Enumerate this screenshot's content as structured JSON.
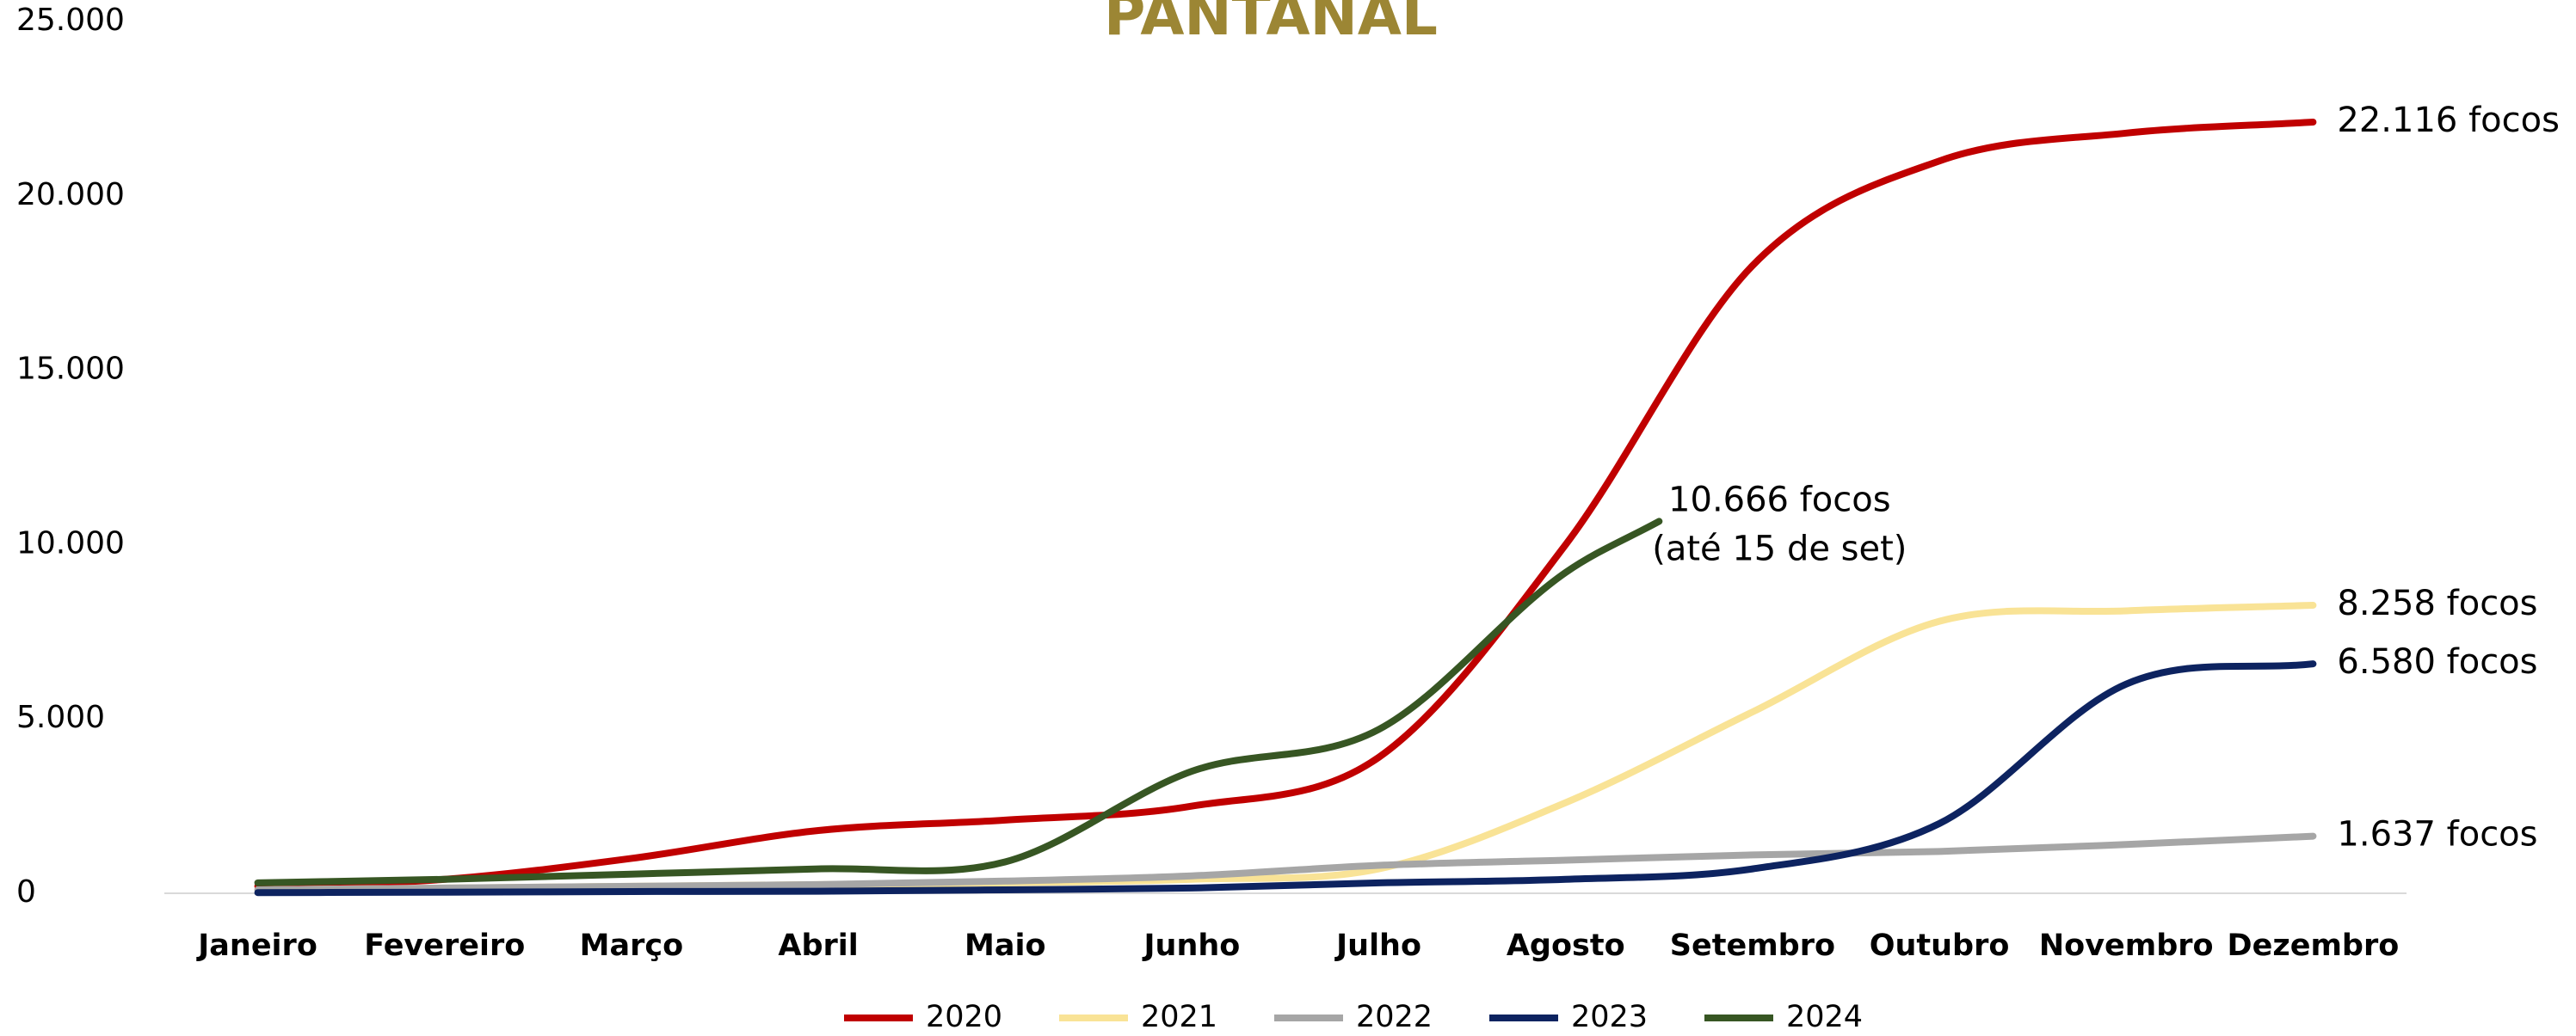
{
  "chart_data": {
    "type": "line",
    "title": "PANTANAL",
    "x": [
      1,
      2,
      3,
      4,
      5,
      6,
      7,
      8,
      9,
      10,
      11,
      12
    ],
    "xlim": [
      0.5,
      12.5
    ],
    "xticks": [
      {
        "value": 1,
        "label": "Janeiro"
      },
      {
        "value": 2,
        "label": "Fevereiro"
      },
      {
        "value": 3,
        "label": "Março"
      },
      {
        "value": 4,
        "label": "Abril"
      },
      {
        "value": 5,
        "label": "Maio"
      },
      {
        "value": 6,
        "label": "Junho"
      },
      {
        "value": 7,
        "label": "Julho"
      },
      {
        "value": 8,
        "label": "Agosto"
      },
      {
        "value": 9,
        "label": "Setembro"
      },
      {
        "value": 10,
        "label": "Outubro"
      },
      {
        "value": 11,
        "label": "Novembro"
      },
      {
        "value": 12,
        "label": "Dezembro"
      }
    ],
    "ylim": [
      0,
      25000
    ],
    "yticks": [
      0,
      {
        "value": 5000,
        "label": "5.000"
      },
      {
        "value": 10000,
        "label": "10.000"
      },
      {
        "value": 15000,
        "label": "15.000"
      },
      {
        "value": 20000,
        "label": "20.000"
      },
      {
        "value": 25000,
        "label": "25.000"
      }
    ],
    "grid": false,
    "series": [
      {
        "name": "2020",
        "color": "#c00000",
        "values": [
          200,
          400,
          1000,
          1800,
          2100,
          2500,
          3900,
          10000,
          18000,
          21000,
          21800,
          22116
        ],
        "value_labels": [
          null,
          null,
          null,
          null,
          null,
          null,
          null,
          null,
          null,
          null,
          null,
          "22.116 focos"
        ]
      },
      {
        "name": "2021",
        "color": "#f9e396",
        "values": [
          100,
          150,
          200,
          250,
          300,
          400,
          700,
          2600,
          5200,
          7800,
          8100,
          8258
        ],
        "value_labels": [
          null,
          null,
          null,
          null,
          null,
          null,
          null,
          null,
          null,
          null,
          null,
          "8.258 focos"
        ]
      },
      {
        "name": "2022",
        "color": "#a6a6a6",
        "values": [
          100,
          150,
          200,
          250,
          350,
          500,
          800,
          950,
          1100,
          1200,
          1400,
          1637
        ],
        "value_labels": [
          null,
          null,
          null,
          null,
          null,
          null,
          null,
          null,
          null,
          null,
          null,
          "1.637 focos"
        ]
      },
      {
        "name": "2023",
        "color": "#0d2360",
        "values": [
          20,
          30,
          50,
          60,
          100,
          150,
          300,
          400,
          700,
          2000,
          6000,
          6580
        ],
        "value_labels": [
          null,
          null,
          null,
          null,
          null,
          null,
          null,
          null,
          null,
          null,
          null,
          "6.580 focos"
        ]
      },
      {
        "name": "2024",
        "color": "#375623",
        "x": [
          1,
          2,
          3,
          4,
          5,
          6,
          7,
          8,
          8.5
        ],
        "values": [
          300,
          400,
          550,
          700,
          900,
          3500,
          4700,
          9200,
          10666
        ],
        "value_labels": [
          null,
          null,
          null,
          null,
          null,
          null,
          null,
          null,
          "10.666 focos"
        ],
        "note": "(até 15 de set)"
      }
    ]
  }
}
